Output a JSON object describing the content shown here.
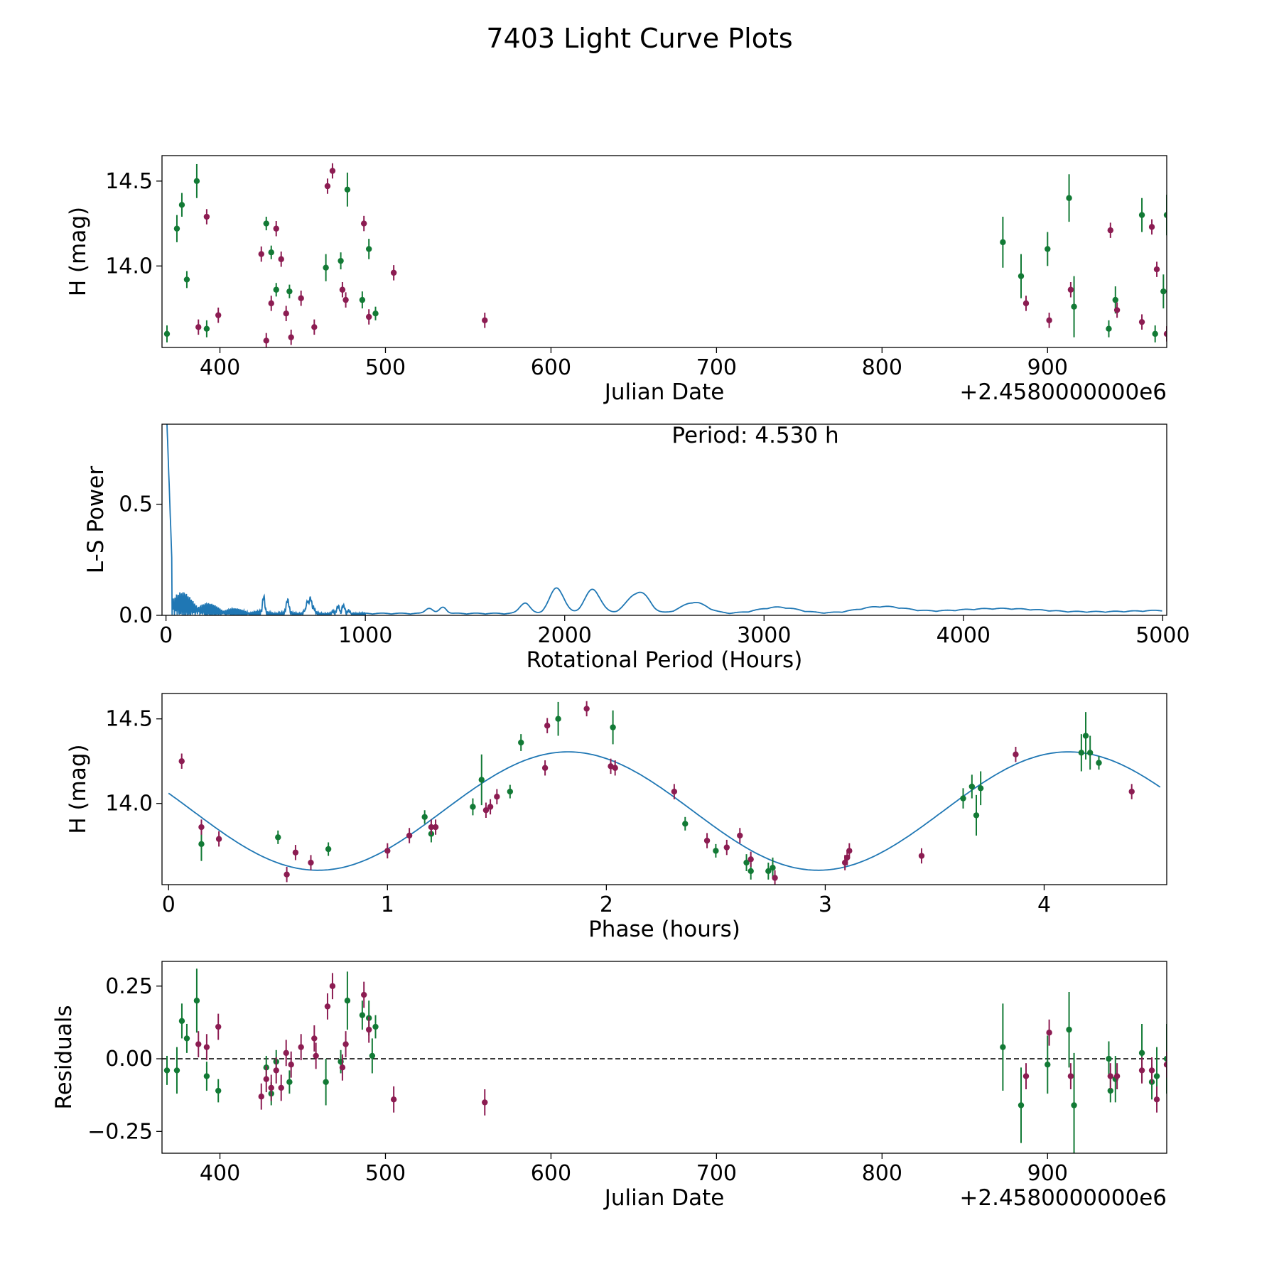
{
  "title": "7403 Light Curve Plots",
  "colors": {
    "green": "#127a35",
    "maroon": "#8c1c52",
    "blue": "#1f77b4"
  },
  "chart_data": [
    {
      "id": "lightcurve",
      "type": "scatter",
      "xlabel": "Julian Date",
      "ylabel": "H (mag)",
      "offset_text": "+2.4580000000e6",
      "xlim": [
        365,
        972
      ],
      "ylim": [
        13.52,
        14.65
      ],
      "xticks": [
        400,
        500,
        600,
        700,
        800,
        900
      ],
      "xtick_labels": [
        "400",
        "500",
        "600",
        "700",
        "800",
        "900"
      ],
      "yticks": [
        14.0,
        14.5
      ],
      "ytick_labels": [
        "14.0",
        "14.5"
      ],
      "series": [
        {
          "color": "green",
          "x": [
            368,
            374,
            377,
            380,
            386,
            392,
            428,
            431,
            434,
            442,
            464,
            473,
            477,
            486,
            490,
            494,
            873,
            884,
            900,
            913,
            916,
            937,
            941,
            957,
            965,
            970,
            972
          ],
          "y": [
            13.6,
            14.22,
            14.36,
            13.92,
            14.5,
            13.63,
            14.25,
            14.08,
            13.86,
            13.85,
            13.99,
            14.03,
            14.45,
            13.8,
            14.1,
            13.72,
            14.14,
            13.94,
            14.1,
            14.4,
            13.76,
            13.63,
            13.8,
            14.3,
            13.6,
            13.85,
            14.3
          ],
          "err": [
            0.05,
            0.08,
            0.07,
            0.05,
            0.1,
            0.05,
            0.04,
            0.04,
            0.04,
            0.04,
            0.08,
            0.05,
            0.1,
            0.05,
            0.06,
            0.04,
            0.15,
            0.13,
            0.1,
            0.14,
            0.18,
            0.05,
            0.08,
            0.1,
            0.05,
            0.1,
            0.12
          ]
        },
        {
          "color": "maroon",
          "x": [
            387,
            392,
            399,
            425,
            428,
            431,
            434,
            437,
            440,
            443,
            449,
            457,
            465,
            468,
            474,
            476,
            487,
            490,
            505,
            560,
            887,
            901,
            914,
            938,
            942,
            957,
            963,
            966,
            972
          ],
          "y": [
            13.64,
            14.29,
            13.71,
            14.07,
            13.56,
            13.78,
            14.22,
            14.04,
            13.72,
            13.58,
            13.81,
            13.64,
            14.47,
            14.56,
            13.86,
            13.8,
            14.25,
            13.7,
            13.96,
            13.68,
            13.78,
            13.68,
            13.86,
            14.21,
            13.74,
            13.67,
            14.23,
            13.98,
            13.6
          ]
        }
      ]
    },
    {
      "id": "periodogram",
      "type": "line",
      "xlabel": "Rotational Period (Hours)",
      "ylabel": "L-S Power",
      "annotation": "Period: 4.530 h",
      "xlim": [
        -20,
        5020
      ],
      "ylim": [
        0,
        0.86
      ],
      "xticks": [
        0,
        1000,
        2000,
        3000,
        4000,
        5000
      ],
      "xtick_labels": [
        "0",
        "1000",
        "2000",
        "3000",
        "4000",
        "5000"
      ],
      "yticks": [
        0.0,
        0.5
      ],
      "ytick_labels": [
        "0.0",
        "0.5"
      ]
    },
    {
      "id": "phased",
      "type": "scatter",
      "xlabel": "Phase (hours)",
      "ylabel": "H (mag)",
      "xlim": [
        -0.03,
        4.56
      ],
      "ylim": [
        13.52,
        14.65
      ],
      "xticks": [
        0,
        1,
        2,
        3,
        4
      ],
      "xtick_labels": [
        "0",
        "1",
        "2",
        "3",
        "4"
      ],
      "yticks": [
        14.0,
        14.5
      ],
      "ytick_labels": [
        "14.0",
        "14.5"
      ],
      "model": {
        "type": "sinusoid",
        "mean": 13.955,
        "amplitude": 0.35,
        "period": 2.285,
        "phase_of_max": 1.825
      },
      "series": [
        {
          "color": "green",
          "x": [
            0.15,
            0.5,
            0.73,
            1.17,
            1.2,
            1.39,
            1.43,
            1.56,
            1.61,
            1.78,
            2.03,
            2.36,
            2.5,
            2.64,
            2.66,
            2.74,
            2.76,
            3.63,
            3.67,
            3.69,
            3.71,
            4.17,
            4.19,
            4.21,
            4.25
          ],
          "y": [
            13.76,
            13.8,
            13.73,
            13.92,
            13.82,
            13.98,
            14.14,
            14.07,
            14.36,
            14.5,
            14.45,
            13.88,
            13.72,
            13.65,
            13.6,
            13.6,
            13.62,
            14.03,
            14.1,
            13.93,
            14.09,
            14.3,
            14.4,
            14.3,
            14.24
          ],
          "err": [
            0.1,
            0.04,
            0.04,
            0.04,
            0.05,
            0.05,
            0.15,
            0.04,
            0.05,
            0.1,
            0.1,
            0.04,
            0.04,
            0.05,
            0.05,
            0.05,
            0.06,
            0.06,
            0.07,
            0.12,
            0.1,
            0.11,
            0.14,
            0.1,
            0.04
          ]
        },
        {
          "color": "maroon",
          "x": [
            0.06,
            0.15,
            0.23,
            0.54,
            0.58,
            0.65,
            1.0,
            1.1,
            1.2,
            1.22,
            1.45,
            1.47,
            1.5,
            1.72,
            1.73,
            1.91,
            2.02,
            2.04,
            2.31,
            2.46,
            2.55,
            2.61,
            2.66,
            2.77,
            3.09,
            3.1,
            3.11,
            3.44,
            3.87,
            4.4
          ],
          "y": [
            14.25,
            13.86,
            13.79,
            13.58,
            13.71,
            13.65,
            13.72,
            13.81,
            13.86,
            13.86,
            13.96,
            13.98,
            14.04,
            14.21,
            14.46,
            14.56,
            14.22,
            14.21,
            14.07,
            13.78,
            13.74,
            13.81,
            13.67,
            13.56,
            13.65,
            13.68,
            13.72,
            13.69,
            14.29,
            14.07
          ]
        }
      ]
    },
    {
      "id": "residuals",
      "type": "scatter",
      "xlabel": "Julian Date",
      "ylabel": "Residuals",
      "offset_text": "+2.4580000000e6",
      "xlim": [
        365,
        972
      ],
      "ylim": [
        -0.325,
        0.335
      ],
      "xticks": [
        400,
        500,
        600,
        700,
        800,
        900
      ],
      "xtick_labels": [
        "400",
        "500",
        "600",
        "700",
        "800",
        "900"
      ],
      "yticks": [
        0.25,
        0.0,
        -0.25
      ],
      "ytick_labels": [
        "0.25",
        "0.00",
        "−0.25"
      ],
      "reference_line": 0,
      "series": [
        {
          "color": "green",
          "x": [
            368,
            374,
            377,
            380,
            386,
            392,
            399,
            428,
            431,
            434,
            442,
            464,
            473,
            477,
            486,
            490,
            492,
            494,
            873,
            884,
            900,
            913,
            916,
            937,
            938,
            941,
            957,
            963,
            966,
            972
          ],
          "y": [
            -0.04,
            -0.04,
            0.13,
            0.07,
            0.2,
            -0.06,
            -0.11,
            -0.03,
            -0.12,
            -0.01,
            -0.08,
            -0.08,
            -0.01,
            0.2,
            0.15,
            0.14,
            0.01,
            0.11,
            0.04,
            -0.16,
            -0.02,
            0.1,
            -0.16,
            0.0,
            -0.11,
            -0.07,
            0.02,
            -0.08,
            -0.06,
            0.0
          ],
          "err": [
            0.05,
            0.08,
            0.06,
            0.05,
            0.11,
            0.05,
            0.04,
            0.04,
            0.04,
            0.04,
            0.04,
            0.08,
            0.04,
            0.1,
            0.05,
            0.06,
            0.06,
            0.04,
            0.15,
            0.13,
            0.1,
            0.13,
            0.18,
            0.06,
            0.04,
            0.08,
            0.1,
            0.06,
            0.1,
            0.12
          ]
        },
        {
          "color": "maroon",
          "x": [
            387,
            392,
            399,
            425,
            428,
            431,
            434,
            437,
            440,
            443,
            449,
            457,
            458,
            465,
            468,
            474,
            476,
            487,
            490,
            505,
            560,
            887,
            901,
            914,
            938,
            942,
            957,
            963,
            966,
            972
          ],
          "y": [
            0.05,
            0.04,
            0.11,
            -0.13,
            -0.07,
            -0.1,
            -0.04,
            -0.1,
            0.02,
            -0.02,
            0.04,
            0.07,
            0.01,
            0.18,
            0.25,
            -0.03,
            0.05,
            0.22,
            0.1,
            -0.14,
            -0.15,
            -0.06,
            0.09,
            -0.06,
            -0.06,
            -0.06,
            -0.04,
            -0.04,
            -0.14,
            -0.02
          ]
        }
      ]
    }
  ]
}
